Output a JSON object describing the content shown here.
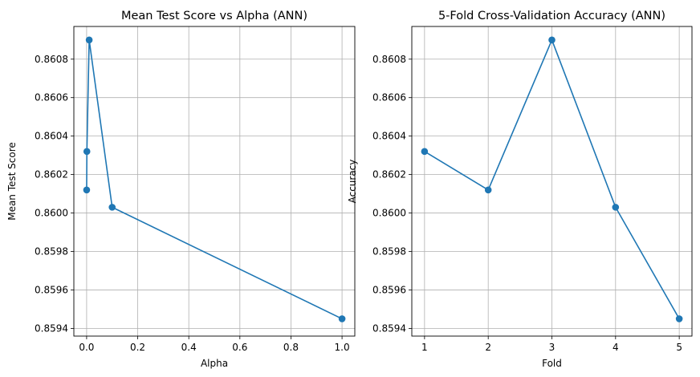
{
  "chart_data": [
    {
      "type": "line",
      "title": "Mean Test Score vs Alpha (ANN)",
      "xlabel": "Alpha",
      "ylabel": "Mean Test Score",
      "x": [
        0.0001,
        0.001,
        0.01,
        0.1,
        1.0
      ],
      "y": [
        0.86012,
        0.86032,
        0.8609,
        0.86003,
        0.85945
      ],
      "xlim": [
        -0.05,
        1.05
      ],
      "ylim": [
        0.85936,
        0.86097
      ],
      "xticks": [
        0.0,
        0.2,
        0.4,
        0.6,
        0.8,
        1.0
      ],
      "xtick_labels": [
        "0.0",
        "0.2",
        "0.4",
        "0.6",
        "0.8",
        "1.0"
      ],
      "yticks": [
        0.8594,
        0.8596,
        0.8598,
        0.86,
        0.8602,
        0.8604,
        0.8606,
        0.8608
      ],
      "ytick_labels": [
        "0.8594",
        "0.8596",
        "0.8598",
        "0.8600",
        "0.8602",
        "0.8604",
        "0.8606",
        "0.8608"
      ],
      "grid": true,
      "color": "#1f77b4",
      "marker": "circle"
    },
    {
      "type": "line",
      "title": "5-Fold Cross-Validation Accuracy (ANN)",
      "xlabel": "Fold",
      "ylabel": "Accuracy",
      "x": [
        1,
        2,
        3,
        4,
        5
      ],
      "y": [
        0.86032,
        0.86012,
        0.8609,
        0.86003,
        0.85945
      ],
      "xlim": [
        0.8,
        5.2
      ],
      "ylim": [
        0.85936,
        0.86097
      ],
      "xticks": [
        1,
        2,
        3,
        4,
        5
      ],
      "xtick_labels": [
        "1",
        "2",
        "3",
        "4",
        "5"
      ],
      "yticks": [
        0.8594,
        0.8596,
        0.8598,
        0.86,
        0.8602,
        0.8604,
        0.8606,
        0.8608
      ],
      "ytick_labels": [
        "0.8594",
        "0.8596",
        "0.8598",
        "0.8600",
        "0.8602",
        "0.8604",
        "0.8606",
        "0.8608"
      ],
      "grid": true,
      "color": "#1f77b4",
      "marker": "circle"
    }
  ]
}
